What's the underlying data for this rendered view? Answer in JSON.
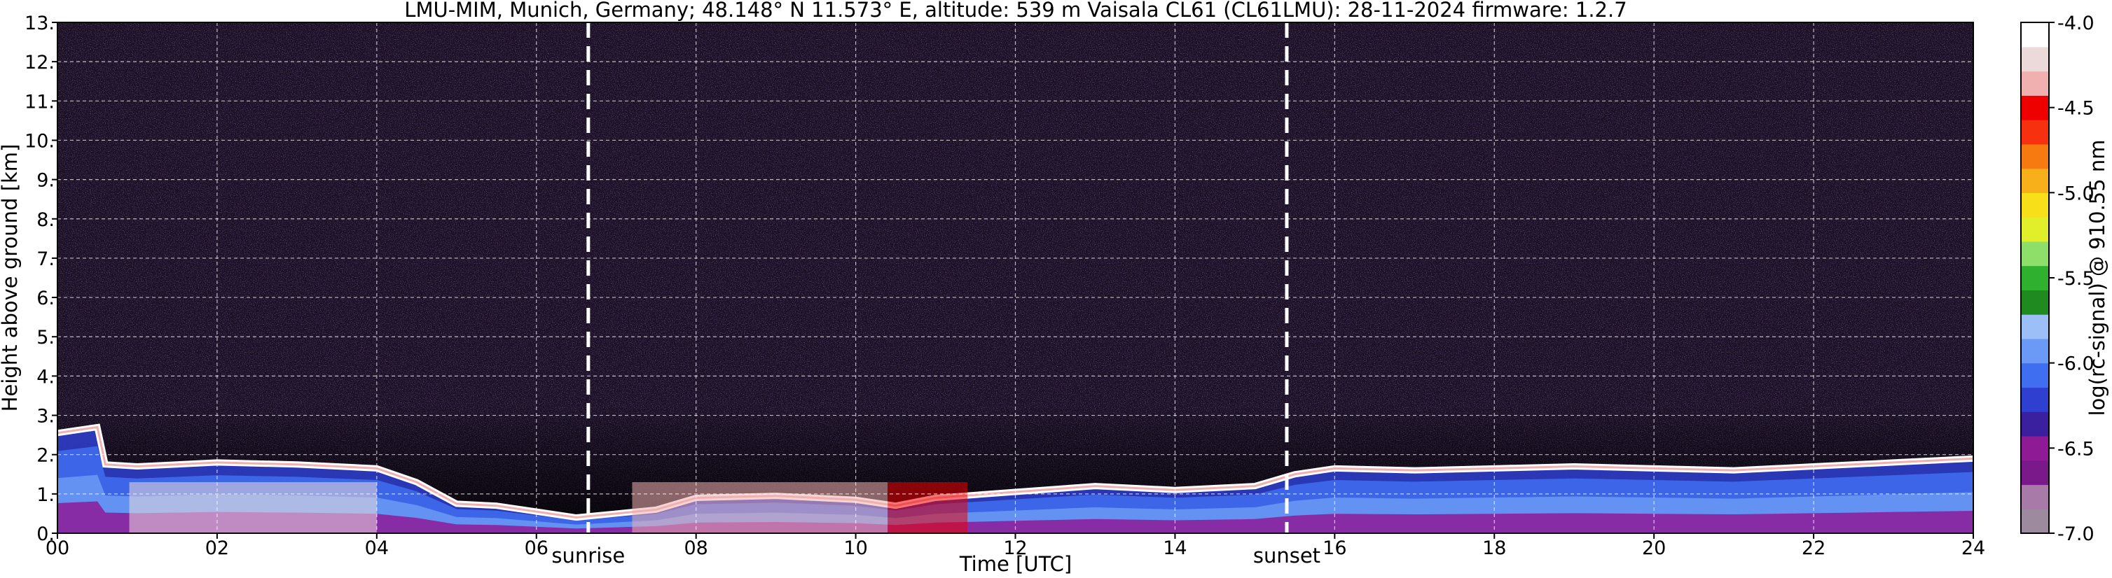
{
  "title": "LMU-MIM, Munich, Germany; 48.148° N 11.573° E, altitude: 539 m    Vaisala CL61 (CL61LMU): 28-11-2024    firmware: 1.2.7",
  "chart_data": {
    "type": "heatmap",
    "xlabel": "Time [UTC]",
    "ylabel": "Height above ground [km]",
    "xlim": [
      0,
      24
    ],
    "ylim": [
      0,
      13
    ],
    "x_ticks": [
      "00",
      "02",
      "04",
      "06",
      "08",
      "10",
      "12",
      "14",
      "16",
      "18",
      "20",
      "22",
      "24"
    ],
    "y_ticks": [
      "0.",
      "1.",
      "2.",
      "3.",
      "4.",
      "5.",
      "6.",
      "7.",
      "8.",
      "9.",
      "10.",
      "11.",
      "12.",
      "13."
    ],
    "grid": true,
    "markers": [
      {
        "label": "sunrise",
        "x": 6.65
      },
      {
        "label": "sunset",
        "x": 15.4
      }
    ],
    "colorbar": {
      "label": "log(rc-signal) @ 910.55 nm",
      "range": [
        -7.0,
        -4.0
      ],
      "ticks": [
        "-4.0",
        "-4.5",
        "-5.0",
        "-5.5",
        "-6.0",
        "-6.5",
        "-7.0"
      ],
      "colors": [
        "#9e8a9e",
        "#a87aa8",
        "#7a1a8a",
        "#8e1a96",
        "#3a1f9e",
        "#2f3fd0",
        "#3f6ef0",
        "#6a9af5",
        "#9cbff7",
        "#1f8a1f",
        "#2fb02f",
        "#8edf6a",
        "#e0ef2a",
        "#f7e01a",
        "#f7b01a",
        "#f77a10",
        "#f73010",
        "#ef0000",
        "#f0b0b0",
        "#ecdada",
        "#ffffff"
      ]
    },
    "profile_height": {
      "x": [
        0,
        0.5,
        0.6,
        1.0,
        2.0,
        3.0,
        4.0,
        4.5,
        5.0,
        5.5,
        6.0,
        6.5,
        7.0,
        7.5,
        8.0,
        9.0,
        10.0,
        10.5,
        11.0,
        12.0,
        13.0,
        14.0,
        15.0,
        15.5,
        16.0,
        17.0,
        18.0,
        19.0,
        20.0,
        21.0,
        22.0,
        23.0,
        24.0
      ],
      "y": [
        2.55,
        2.7,
        1.75,
        1.7,
        1.8,
        1.75,
        1.65,
        1.3,
        0.75,
        0.7,
        0.55,
        0.4,
        0.5,
        0.6,
        0.9,
        0.95,
        0.85,
        0.7,
        0.9,
        1.05,
        1.2,
        1.1,
        1.2,
        1.5,
        1.65,
        1.6,
        1.65,
        1.7,
        1.65,
        1.6,
        1.7,
        1.8,
        1.9
      ]
    }
  }
}
